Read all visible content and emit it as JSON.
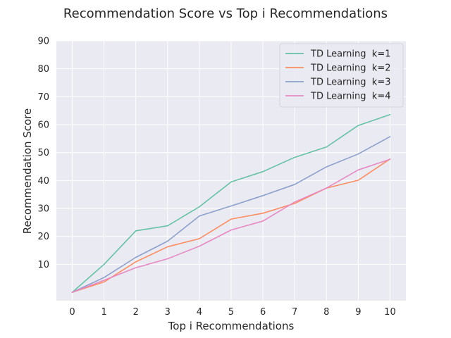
{
  "chart_data": {
    "type": "line",
    "title": "Recommendation Score vs Top i Recommendations",
    "xlabel": "Top i Recommendations",
    "ylabel": "Recommendation Score",
    "x": [
      0,
      1,
      2,
      3,
      4,
      5,
      6,
      7,
      8,
      9,
      10
    ],
    "xticks": [
      "0",
      "1",
      "2",
      "3",
      "4",
      "5",
      "6",
      "7",
      "8",
      "9",
      "10"
    ],
    "yticks": [
      "10",
      "20",
      "30",
      "40",
      "50",
      "60",
      "70",
      "80",
      "90"
    ],
    "xlim": [
      -0.5,
      10.5
    ],
    "ylim": [
      -3,
      90
    ],
    "grid": true,
    "legend_position": "top-right",
    "series": [
      {
        "name": "TD Learning  k=1",
        "color": "#66c2a5",
        "values": [
          0,
          10,
          22,
          23.8,
          30.6,
          39.5,
          43.2,
          48.3,
          52,
          59.7,
          63.6
        ]
      },
      {
        "name": "TD Learning  k=2",
        "color": "#fc8d62",
        "values": [
          0,
          3.7,
          10.9,
          16.3,
          19.2,
          26.2,
          28.3,
          31.8,
          37.3,
          40.1,
          47.7
        ]
      },
      {
        "name": "TD Learning  k=3",
        "color": "#8da0cb",
        "values": [
          0,
          5.3,
          12.5,
          18.3,
          27.3,
          30.9,
          34.6,
          38.6,
          44.9,
          49.5,
          55.7
        ]
      },
      {
        "name": "TD Learning  k=4",
        "color": "#e78ac3",
        "values": [
          0,
          4.3,
          8.8,
          12,
          16.5,
          22.3,
          25.5,
          32.3,
          37.3,
          43.8,
          47.6
        ]
      }
    ]
  }
}
